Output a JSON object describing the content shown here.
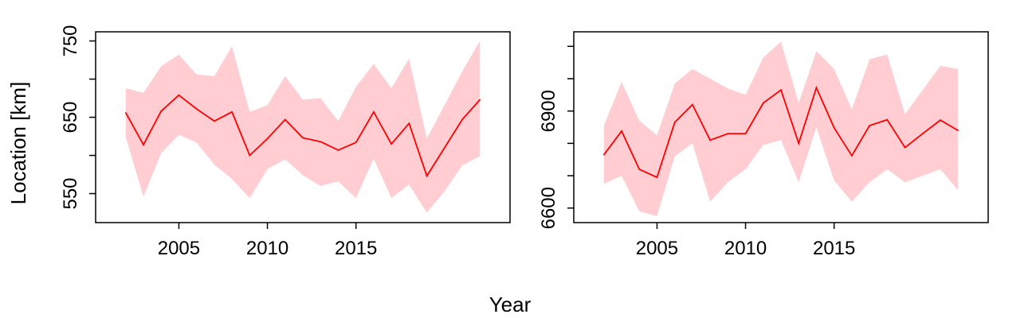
{
  "figure": {
    "xlabel": "Year",
    "ylabel": "Location [km]",
    "colors": {
      "line": "#ff0000",
      "band": "#ffcdd2",
      "axis": "#000000"
    }
  },
  "chart_data": [
    {
      "type": "line",
      "x": [
        2002,
        2003,
        2004,
        2005,
        2006,
        2007,
        2008,
        2009,
        2010,
        2011,
        2012,
        2013,
        2014,
        2015,
        2016,
        2017,
        2018,
        2019,
        2020,
        2021,
        2022
      ],
      "series": [
        {
          "values": [
            656,
            614,
            658,
            679,
            661,
            645,
            657,
            600,
            622,
            647,
            623,
            618,
            607,
            617,
            657,
            615,
            642,
            573,
            610,
            647,
            673
          ],
          "lower": [
            624,
            546,
            603,
            627,
            617,
            588,
            569,
            544,
            582,
            595,
            574,
            560,
            566,
            544,
            596,
            544,
            562,
            525,
            553,
            587,
            599
          ],
          "upper": [
            688,
            682,
            717,
            732,
            706,
            704,
            743,
            657,
            666,
            704,
            673,
            675,
            645,
            690,
            720,
            688,
            727,
            622,
            666,
            710,
            750
          ]
        }
      ],
      "xticks": [
        2005,
        2010,
        2015
      ],
      "yticks": [
        550,
        650,
        750
      ],
      "yticks_minor": [
        600,
        700
      ],
      "xlim": [
        2000.3,
        2023.7
      ],
      "ylim": [
        512,
        762
      ]
    },
    {
      "type": "line",
      "x": [
        2002,
        2003,
        2004,
        2005,
        2006,
        2007,
        2008,
        2009,
        2010,
        2011,
        2012,
        2013,
        2014,
        2015,
        2016,
        2017,
        2018,
        2019,
        2020,
        2021,
        2022
      ],
      "series": [
        {
          "values": [
            6765,
            6838,
            6720,
            6695,
            6865,
            6920,
            6810,
            6830,
            6830,
            6925,
            6965,
            6800,
            6972,
            6848,
            6762,
            6855,
            6873,
            6787,
            6830,
            6872,
            6840
          ],
          "lower": [
            6675,
            6700,
            6590,
            6575,
            6760,
            6800,
            6620,
            6680,
            6720,
            6795,
            6810,
            6680,
            6850,
            6685,
            6620,
            6680,
            6720,
            6680,
            6700,
            6720,
            6655
          ],
          "upper": [
            6855,
            6990,
            6870,
            6825,
            6985,
            7030,
            7000,
            6970,
            6950,
            7065,
            7115,
            6925,
            7085,
            7030,
            6905,
            7060,
            7075,
            6890,
            6965,
            7040,
            7030
          ]
        }
      ],
      "xticks": [
        2005,
        2010,
        2015
      ],
      "yticks": [
        6600,
        6900
      ],
      "yticks_minor": [
        6700,
        6800,
        7000,
        7100
      ],
      "xlim": [
        2000.3,
        2023.7
      ],
      "ylim": [
        6555,
        7145
      ]
    }
  ]
}
